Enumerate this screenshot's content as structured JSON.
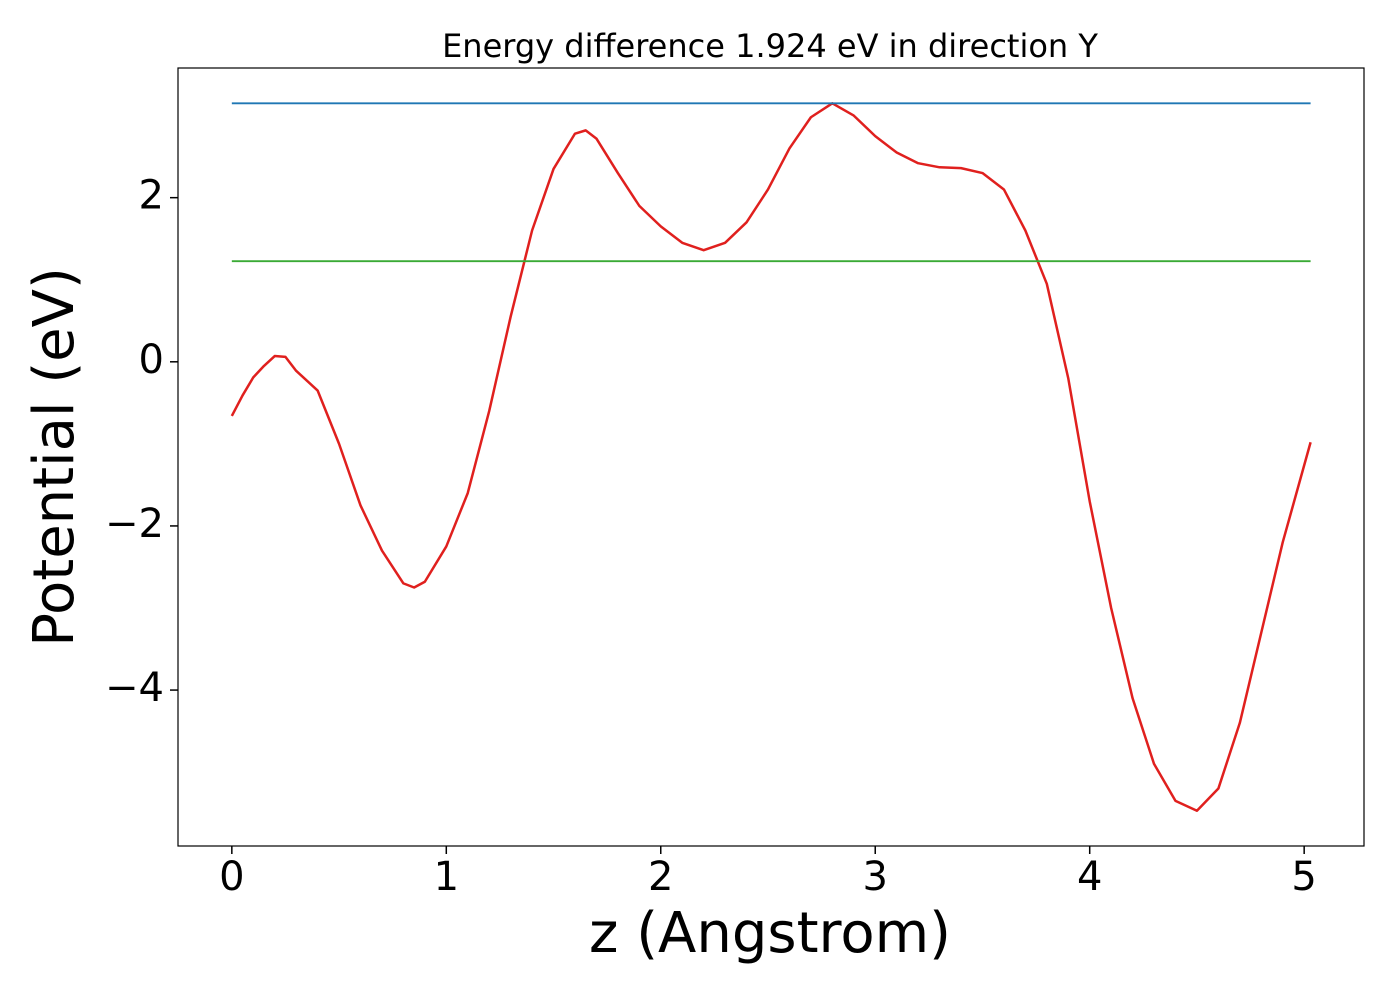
{
  "chart_data": {
    "type": "line",
    "title": "Energy difference 1.924 eV in direction Y",
    "xlabel": "z (Angstrom)",
    "ylabel": "Potential (eV)",
    "xlim": [
      -0.251,
      5.279
    ],
    "ylim": [
      -5.9,
      3.58
    ],
    "xticks": [
      0,
      1,
      2,
      3,
      4,
      5
    ],
    "yticks": [
      {
        "value": -4,
        "label": "−4"
      },
      {
        "value": -2,
        "label": "−2"
      },
      0,
      2
    ],
    "grid": false,
    "series": [
      {
        "color": "#e0201e",
        "x": [
          0,
          0.05,
          0.1,
          0.15,
          0.2,
          0.25,
          0.3,
          0.4,
          0.5,
          0.6,
          0.7,
          0.8,
          0.85,
          0.9,
          1.0,
          1.1,
          1.2,
          1.3,
          1.4,
          1.5,
          1.6,
          1.65,
          1.7,
          1.8,
          1.9,
          2.0,
          2.1,
          2.2,
          2.3,
          2.4,
          2.5,
          2.6,
          2.7,
          2.8,
          2.9,
          3.0,
          3.1,
          3.2,
          3.3,
          3.4,
          3.5,
          3.6,
          3.7,
          3.8,
          3.9,
          4.0,
          4.1,
          4.2,
          4.3,
          4.4,
          4.5,
          4.6,
          4.7,
          4.8,
          4.9,
          5.03
        ],
        "values": [
          -0.66,
          -0.41,
          -0.19,
          -0.05,
          0.07,
          0.06,
          -0.11,
          -0.35,
          -1.0,
          -1.75,
          -2.3,
          -2.7,
          -2.75,
          -2.68,
          -2.25,
          -1.6,
          -0.6,
          0.55,
          1.6,
          2.35,
          2.78,
          2.82,
          2.72,
          2.3,
          1.9,
          1.65,
          1.45,
          1.36,
          1.45,
          1.7,
          2.1,
          2.6,
          2.98,
          3.15,
          3.0,
          2.75,
          2.55,
          2.42,
          2.37,
          2.36,
          2.3,
          2.1,
          1.6,
          0.95,
          -0.2,
          -1.7,
          -3.0,
          -4.1,
          -4.9,
          -5.35,
          -5.47,
          -5.2,
          -4.4,
          -3.3,
          -2.2,
          -0.98
        ]
      },
      {
        "color": "#1f77b4",
        "x": [
          0,
          5.03
        ],
        "values": [
          3.15,
          3.15
        ]
      },
      {
        "color": "#3aaa35",
        "x": [
          0,
          5.03
        ],
        "values": [
          1.226,
          1.226
        ]
      }
    ]
  }
}
